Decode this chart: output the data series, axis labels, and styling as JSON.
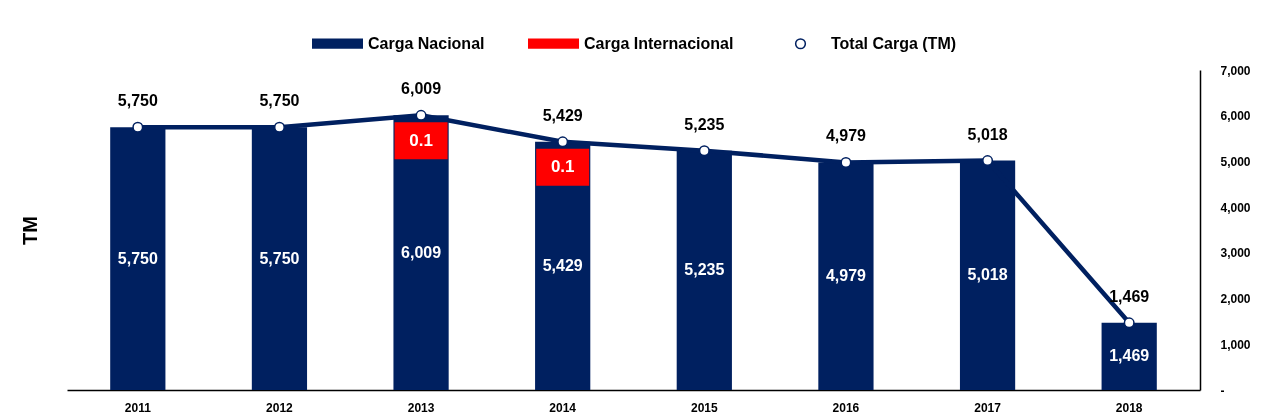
{
  "chart_data": {
    "type": "bar",
    "stacked": true,
    "categories": [
      "2011",
      "2012",
      "2013",
      "2014",
      "2015",
      "2016",
      "2017",
      "2018"
    ],
    "series": [
      {
        "name": "Carga Nacional",
        "color": "#002060",
        "values": [
          5750,
          5750,
          6009,
          5429,
          5235,
          4979,
          5018,
          1469
        ],
        "value_labels": [
          "5,750",
          "5,750",
          "6,009",
          "5,429",
          "5,235",
          "4,979",
          "5,018",
          "1,469"
        ]
      },
      {
        "name": "Carga Internacional",
        "color": "#ff0000",
        "values": [
          null,
          null,
          0.1,
          0.1,
          null,
          null,
          null,
          null
        ],
        "value_labels": [
          null,
          null,
          "0.1",
          "0.1",
          null,
          null,
          null,
          null
        ]
      },
      {
        "name": "Total Carga (TM)",
        "type": "line",
        "color": "#002060",
        "values": [
          5750,
          5750,
          6009,
          5429,
          5235,
          4979,
          5018,
          1469
        ],
        "value_labels": [
          "5,750",
          "5,750",
          "6,009",
          "5,429",
          "5,235",
          "4,979",
          "5,018",
          "1,469"
        ]
      }
    ],
    "ylabel": "TM",
    "ylim": [
      0,
      7000
    ],
    "yticks": [
      {
        "value": 0,
        "label": "-"
      },
      {
        "value": 1000,
        "label": "1,000"
      },
      {
        "value": 2000,
        "label": "2,000"
      },
      {
        "value": 3000,
        "label": "3,000"
      },
      {
        "value": 4000,
        "label": "4,000"
      },
      {
        "value": 5000,
        "label": "5,000"
      },
      {
        "value": 6000,
        "label": "6,000"
      },
      {
        "value": 7000,
        "label": "7,000"
      }
    ],
    "legend": "top",
    "marker": "circle"
  }
}
